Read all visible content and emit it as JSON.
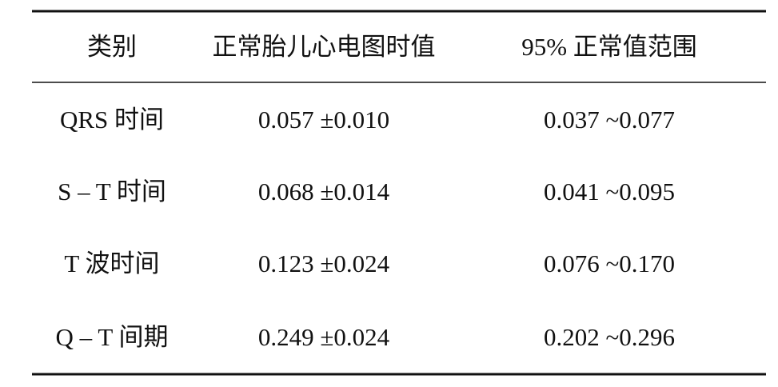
{
  "table": {
    "header": [
      "类别",
      "正常胎儿心电图时值",
      "95% 正常值范围"
    ],
    "rows": [
      [
        "QRS 时间",
        "0.057 ±0.010",
        "0.037 ~0.077"
      ],
      [
        "S – T 时间",
        "0.068 ±0.014",
        "0.041 ~0.095"
      ],
      [
        "T 波时间",
        "0.123 ±0.024",
        "0.076 ~0.170"
      ],
      [
        "Q – T 间期",
        "0.249 ±0.024",
        "0.202 ~0.296"
      ]
    ]
  }
}
